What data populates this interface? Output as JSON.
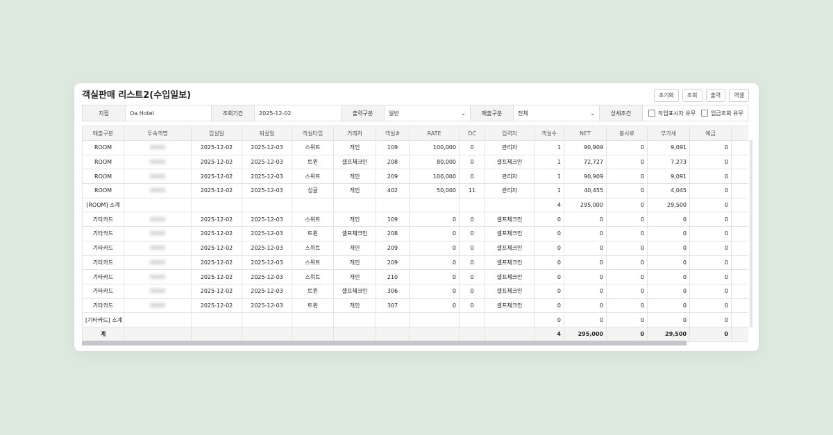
{
  "header": {
    "title": "객실판매 리스트2(수입일보)",
    "buttons": [
      "초기화",
      "조회",
      "출력",
      "엑셀"
    ]
  },
  "filters": {
    "branch_label": "지점",
    "branch": "Oa Hotel",
    "period_label": "조회기간",
    "period": "2025-12-02",
    "output_label": "출력구분",
    "output": "일반",
    "sales_label": "매출구분",
    "sales": "전체",
    "detail_label": "상세조건",
    "checks": [
      "작업표시자 유무",
      "입금조회 유무"
    ]
  },
  "table": {
    "columns": [
      "매출구분",
      "투숙객명",
      "입실일",
      "퇴실일",
      "객실타입",
      "거래처",
      "객실#",
      "RATE",
      "DC",
      "입력자",
      "객실수",
      "NET",
      "봉사료",
      "부가세",
      "예금"
    ],
    "rows": [
      [
        "ROOM",
        null,
        "2025-12-02",
        "2025-12-03",
        "스위트",
        "개인",
        "109",
        "100,000",
        "0",
        "관리자",
        "1",
        "90,909",
        "0",
        "9,091",
        "0"
      ],
      [
        "ROOM",
        null,
        "2025-12-02",
        "2025-12-03",
        "트윈",
        "셀프체크인",
        "208",
        "80,000",
        "0",
        "셀프체크인",
        "1",
        "72,727",
        "0",
        "7,273",
        "0"
      ],
      [
        "ROOM",
        null,
        "2025-12-02",
        "2025-12-03",
        "스위트",
        "개인",
        "209",
        "100,000",
        "0",
        "관리자",
        "1",
        "90,909",
        "0",
        "9,091",
        "0"
      ],
      [
        "ROOM",
        null,
        "2025-12-02",
        "2025-12-03",
        "싱글",
        "개인",
        "402",
        "50,000",
        "11",
        "관리자",
        "1",
        "40,455",
        "0",
        "4,045",
        "0"
      ],
      [
        "[ROOM] 소계",
        null,
        null,
        null,
        null,
        null,
        null,
        null,
        null,
        null,
        "4",
        "295,000",
        "0",
        "29,500",
        "0"
      ],
      [
        "기타카드",
        null,
        "2025-12-02",
        "2025-12-03",
        "스위트",
        "개인",
        "109",
        "0",
        "0",
        "셀프체크인",
        "0",
        "0",
        "0",
        "0",
        "0"
      ],
      [
        "기타카드",
        null,
        "2025-12-02",
        "2025-12-03",
        "트윈",
        "셀프체크인",
        "208",
        "0",
        "0",
        "셀프체크인",
        "0",
        "0",
        "0",
        "0",
        "0"
      ],
      [
        "기타카드",
        null,
        "2025-12-02",
        "2025-12-03",
        "스위트",
        "개인",
        "209",
        "0",
        "0",
        "셀프체크인",
        "0",
        "0",
        "0",
        "0",
        "0"
      ],
      [
        "기타카드",
        null,
        "2025-12-02",
        "2025-12-03",
        "스위트",
        "개인",
        "209",
        "0",
        "0",
        "셀프체크인",
        "0",
        "0",
        "0",
        "0",
        "0"
      ],
      [
        "기타카드",
        null,
        "2025-12-02",
        "2025-12-03",
        "스위트",
        "개인",
        "210",
        "0",
        "0",
        "셀프체크인",
        "0",
        "0",
        "0",
        "0",
        "0"
      ],
      [
        "기타카드",
        null,
        "2025-12-02",
        "2025-12-03",
        "트윈",
        "셀프체크인",
        "306",
        "0",
        "0",
        "셀프체크인",
        "0",
        "0",
        "0",
        "0",
        "0"
      ],
      [
        "기타카드",
        null,
        "2025-12-02",
        "2025-12-03",
        "트윈",
        "개인",
        "307",
        "0",
        "0",
        "셀프체크인",
        "0",
        "0",
        "0",
        "0",
        "0"
      ],
      [
        "[기타카드] 소계",
        null,
        null,
        null,
        null,
        null,
        null,
        null,
        null,
        null,
        "0",
        "0",
        "0",
        "0",
        "0"
      ]
    ],
    "total": [
      "계",
      null,
      null,
      null,
      null,
      null,
      null,
      null,
      null,
      null,
      "4",
      "295,000",
      "0",
      "29,500",
      "0"
    ]
  }
}
